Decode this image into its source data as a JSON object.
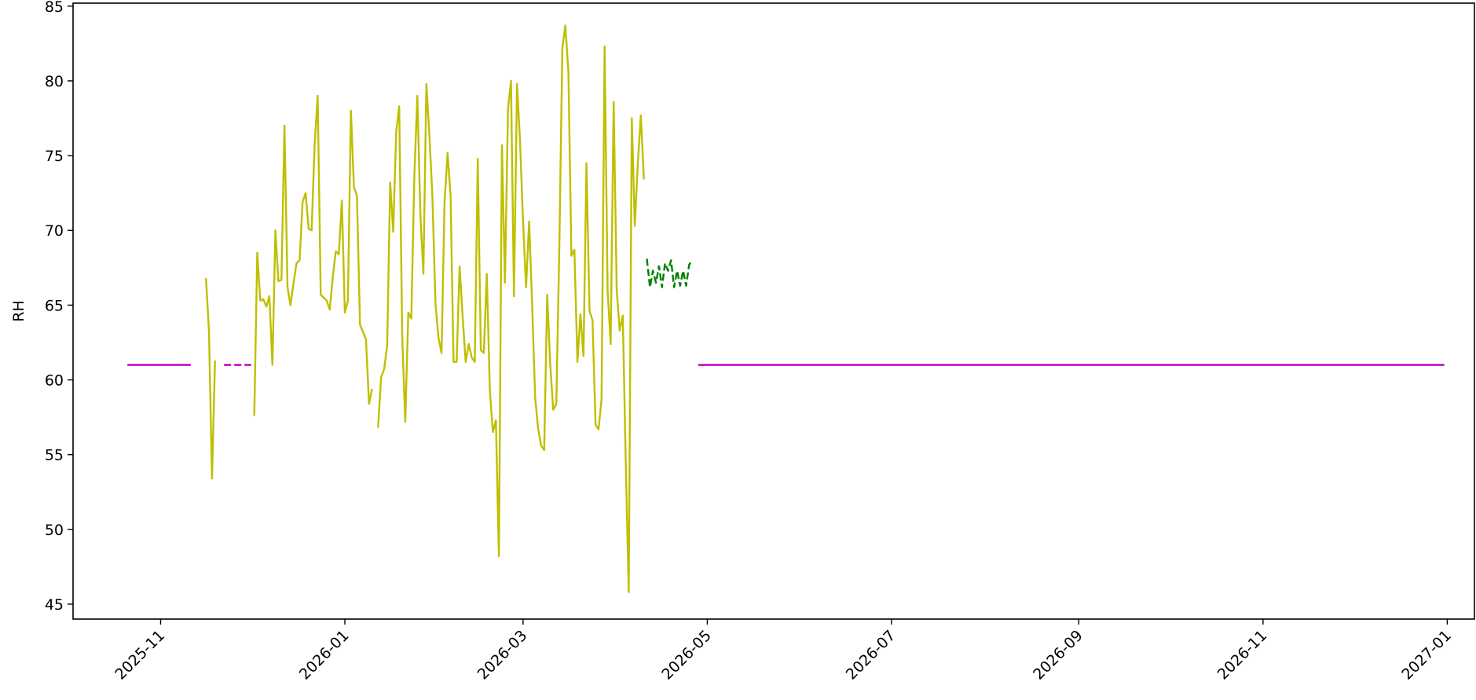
{
  "chart_data": {
    "type": "line",
    "title": "",
    "xlabel": "",
    "ylabel": "RH",
    "ylim": [
      44,
      85.2
    ],
    "xlim": [
      "2025-10-03",
      "2027-01-10"
    ],
    "grid": false,
    "legend": "none",
    "y_ticks": [
      "45",
      "50",
      "55",
      "60",
      "65",
      "70",
      "75",
      "80",
      "85"
    ],
    "x_ticks": [
      "2025-11",
      "2026-01",
      "2026-03",
      "2026-05",
      "2026-07",
      "2026-09",
      "2026-11",
      "2027-01"
    ],
    "series": [
      {
        "color": "#bfbf00",
        "style": "solid",
        "segments": [
          [
            [
              "2025-11-16",
              66.8
            ],
            [
              "2025-11-17",
              63.3
            ],
            [
              "2025-11-18",
              53.4
            ],
            [
              "2025-11-19",
              61.3
            ]
          ],
          [
            [
              "2025-12-02",
              57.6
            ],
            [
              "2025-12-03",
              68.5
            ],
            [
              "2025-12-04",
              65.3
            ],
            [
              "2025-12-05",
              65.4
            ],
            [
              "2025-12-06",
              64.9
            ],
            [
              "2025-12-07",
              65.6
            ],
            [
              "2025-12-08",
              61.0
            ],
            [
              "2025-12-09",
              70.0
            ],
            [
              "2025-12-10",
              66.6
            ],
            [
              "2025-12-11",
              66.7
            ],
            [
              "2025-12-12",
              77.0
            ],
            [
              "2025-12-13",
              66.2
            ],
            [
              "2025-12-14",
              65.0
            ],
            [
              "2025-12-15",
              66.5
            ],
            [
              "2025-12-16",
              67.8
            ],
            [
              "2025-12-17",
              68.0
            ],
            [
              "2025-12-18",
              71.9
            ],
            [
              "2025-12-19",
              72.5
            ],
            [
              "2025-12-20",
              70.1
            ],
            [
              "2025-12-21",
              70.0
            ],
            [
              "2025-12-22",
              75.8
            ],
            [
              "2025-12-23",
              79.0
            ],
            [
              "2025-12-24",
              65.7
            ],
            [
              "2025-12-25",
              65.5
            ],
            [
              "2025-12-26",
              65.3
            ],
            [
              "2025-12-27",
              64.7
            ],
            [
              "2025-12-28",
              66.9
            ],
            [
              "2025-12-29",
              68.6
            ],
            [
              "2025-12-30",
              68.4
            ],
            [
              "2025-12-31",
              72.0
            ],
            [
              "2026-01-01",
              64.5
            ],
            [
              "2026-01-02",
              65.3
            ],
            [
              "2026-01-03",
              78.0
            ],
            [
              "2026-01-04",
              72.9
            ],
            [
              "2026-01-05",
              72.3
            ],
            [
              "2026-01-06",
              63.7
            ],
            [
              "2026-01-07",
              63.2
            ],
            [
              "2026-01-08",
              62.7
            ],
            [
              "2026-01-09",
              58.4
            ],
            [
              "2026-01-10",
              59.4
            ]
          ],
          [
            [
              "2026-01-12",
              56.8
            ],
            [
              "2026-01-13",
              60.2
            ],
            [
              "2026-01-14",
              60.7
            ],
            [
              "2026-01-15",
              62.3
            ],
            [
              "2026-01-16",
              73.2
            ],
            [
              "2026-01-17",
              69.9
            ],
            [
              "2026-01-18",
              76.6
            ],
            [
              "2026-01-19",
              78.3
            ],
            [
              "2026-01-20",
              62.8
            ],
            [
              "2026-01-21",
              57.2
            ],
            [
              "2026-01-22",
              64.5
            ],
            [
              "2026-01-23",
              64.1
            ],
            [
              "2026-01-24",
              73.7
            ],
            [
              "2026-01-25",
              79.0
            ],
            [
              "2026-01-26",
              71.0
            ],
            [
              "2026-01-27",
              67.1
            ],
            [
              "2026-01-28",
              79.8
            ],
            [
              "2026-01-29",
              76.3
            ],
            [
              "2026-01-30",
              72.2
            ],
            [
              "2026-01-31",
              65.1
            ],
            [
              "2026-02-01",
              62.8
            ],
            [
              "2026-02-02",
              61.8
            ],
            [
              "2026-02-03",
              71.9
            ],
            [
              "2026-02-04",
              75.2
            ],
            [
              "2026-02-05",
              72.3
            ],
            [
              "2026-02-06",
              61.2
            ],
            [
              "2026-02-07",
              61.2
            ],
            [
              "2026-02-08",
              67.6
            ],
            [
              "2026-02-09",
              64.2
            ],
            [
              "2026-02-10",
              61.2
            ],
            [
              "2026-02-11",
              62.4
            ],
            [
              "2026-02-12",
              61.5
            ],
            [
              "2026-02-13",
              61.2
            ],
            [
              "2026-02-14",
              74.8
            ],
            [
              "2026-02-15",
              62.0
            ],
            [
              "2026-02-16",
              61.8
            ],
            [
              "2026-02-17",
              67.1
            ],
            [
              "2026-02-18",
              59.3
            ],
            [
              "2026-02-19",
              56.5
            ],
            [
              "2026-02-20",
              57.3
            ],
            [
              "2026-02-21",
              48.2
            ],
            [
              "2026-02-22",
              75.7
            ],
            [
              "2026-02-23",
              66.5
            ],
            [
              "2026-02-24",
              78.1
            ],
            [
              "2026-02-25",
              80.0
            ],
            [
              "2026-02-26",
              65.6
            ],
            [
              "2026-02-27",
              79.8
            ],
            [
              "2026-02-28",
              76.0
            ],
            [
              "2026-03-01",
              70.5
            ],
            [
              "2026-03-02",
              66.2
            ],
            [
              "2026-03-03",
              70.6
            ],
            [
              "2026-03-04",
              65.1
            ],
            [
              "2026-03-05",
              58.8
            ],
            [
              "2026-03-06",
              56.7
            ],
            [
              "2026-03-07",
              55.6
            ],
            [
              "2026-03-08",
              55.3
            ],
            [
              "2026-03-09",
              65.7
            ],
            [
              "2026-03-10",
              61.0
            ],
            [
              "2026-03-11",
              58.0
            ],
            [
              "2026-03-12",
              58.4
            ],
            [
              "2026-03-13",
              68.8
            ],
            [
              "2026-03-14",
              82.2
            ],
            [
              "2026-03-15",
              83.7
            ],
            [
              "2026-03-16",
              80.6
            ],
            [
              "2026-03-17",
              68.3
            ],
            [
              "2026-03-18",
              68.7
            ],
            [
              "2026-03-19",
              61.2
            ],
            [
              "2026-03-20",
              64.4
            ],
            [
              "2026-03-21",
              61.6
            ],
            [
              "2026-03-22",
              74.5
            ],
            [
              "2026-03-23",
              64.6
            ],
            [
              "2026-03-24",
              64.0
            ],
            [
              "2026-03-25",
              57.0
            ],
            [
              "2026-03-26",
              56.7
            ],
            [
              "2026-03-27",
              58.7
            ],
            [
              "2026-03-28",
              82.3
            ],
            [
              "2026-03-29",
              66.0
            ],
            [
              "2026-03-30",
              62.4
            ],
            [
              "2026-03-31",
              78.6
            ],
            [
              "2026-04-01",
              66.0
            ],
            [
              "2026-04-02",
              63.3
            ],
            [
              "2026-04-03",
              64.3
            ],
            [
              "2026-04-04",
              54.5
            ],
            [
              "2026-04-05",
              45.8
            ],
            [
              "2026-04-06",
              77.5
            ],
            [
              "2026-04-07",
              70.3
            ],
            [
              "2026-04-08",
              74.5
            ],
            [
              "2026-04-09",
              77.7
            ],
            [
              "2026-04-10",
              73.4
            ]
          ]
        ]
      },
      {
        "color": "#008000",
        "style": "dashed",
        "segments": [
          [
            [
              "2026-04-11",
              68.1
            ],
            [
              "2026-04-12",
              66.2
            ],
            [
              "2026-04-13",
              67.3
            ],
            [
              "2026-04-14",
              66.5
            ],
            [
              "2026-04-15",
              67.6
            ],
            [
              "2026-04-16",
              66.2
            ],
            [
              "2026-04-17",
              67.8
            ],
            [
              "2026-04-18",
              67.3
            ],
            [
              "2026-04-19",
              68.0
            ],
            [
              "2026-04-20",
              66.2
            ],
            [
              "2026-04-21",
              67.3
            ],
            [
              "2026-04-22",
              66.3
            ],
            [
              "2026-04-23",
              67.3
            ],
            [
              "2026-04-24",
              66.3
            ],
            [
              "2026-04-25",
              67.7
            ],
            [
              "2026-04-26",
              68.0
            ]
          ]
        ]
      },
      {
        "color": "#bf00bf",
        "style": "solid",
        "segments": [
          [
            [
              "2025-10-21",
              61.0
            ],
            [
              "2025-11-11",
              61.0
            ]
          ],
          [
            [
              "2026-04-28",
              61.0
            ],
            [
              "2026-12-31",
              61.0
            ]
          ]
        ]
      },
      {
        "color": "#bf00bf",
        "style": "dashed",
        "segments": [
          [
            [
              "2025-11-22",
              61.0
            ],
            [
              "2025-12-01",
              61.0
            ]
          ]
        ]
      }
    ]
  }
}
